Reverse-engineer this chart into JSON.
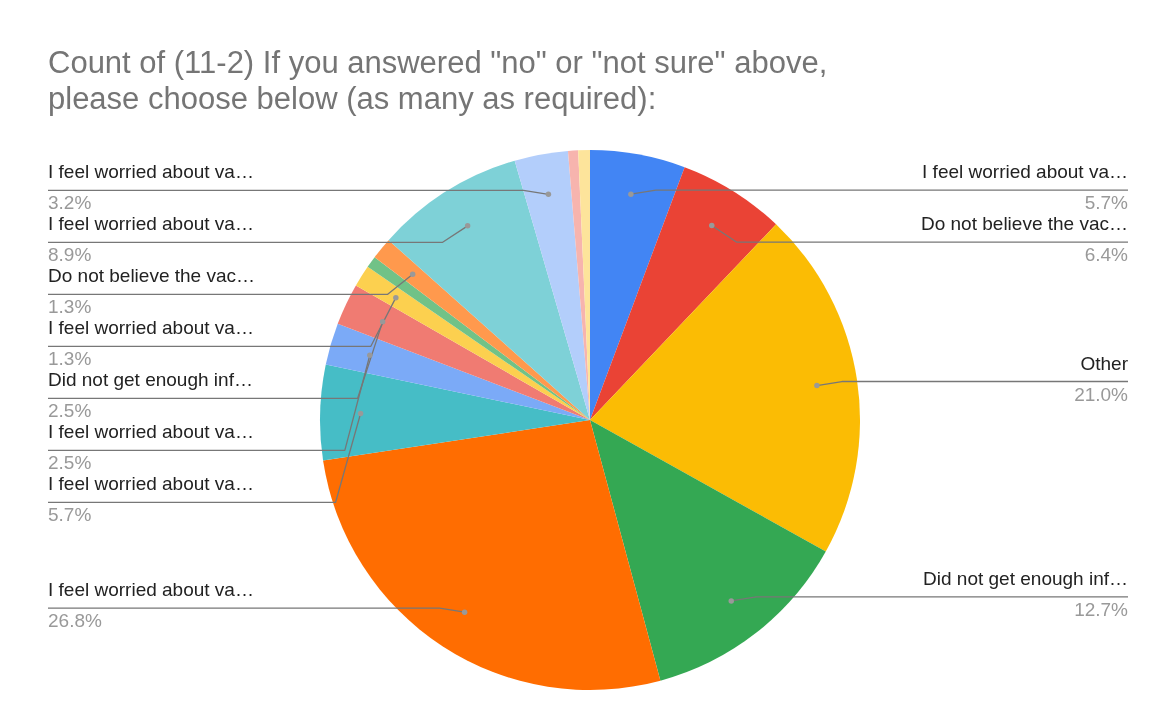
{
  "chart_data": {
    "type": "pie",
    "title": "Count of (11-2) If you answered \"no\" or \"not sure\" above, please choose below (as many as required):",
    "categories": [
      "I feel worried about va…",
      "Do not believe the vac…",
      "Other",
      "Did not get enough inf…",
      "I feel worried about va…",
      "I feel worried about va…",
      "I feel worried about va…",
      "Did not get enough inf…",
      "I feel worried about va…",
      null,
      "Do not believe the vac…",
      "I feel worried about va…",
      "I feel worried about va…",
      null,
      null
    ],
    "values": [
      5.7,
      6.4,
      21.0,
      12.7,
      26.8,
      5.7,
      2.5,
      2.5,
      1.3,
      0.7,
      1.3,
      8.9,
      3.2,
      0.6,
      0.7
    ],
    "value_labels": [
      "5.7%",
      "6.4%",
      "21.0%",
      "12.7%",
      "26.8%",
      "5.7%",
      "2.5%",
      "2.5%",
      "1.3%",
      null,
      "1.3%",
      "8.9%",
      "3.2%",
      null,
      null
    ],
    "colors": [
      "#4285f4",
      "#ea4335",
      "#fbbc04",
      "#34a853",
      "#ff6d01",
      "#46bdc6",
      "#7baaf7",
      "#f07b72",
      "#fcd04f",
      "#71c287",
      "#ff994d",
      "#7ed1d7",
      "#b3cefb",
      "#f7b4ae",
      "#fde49b"
    ]
  }
}
